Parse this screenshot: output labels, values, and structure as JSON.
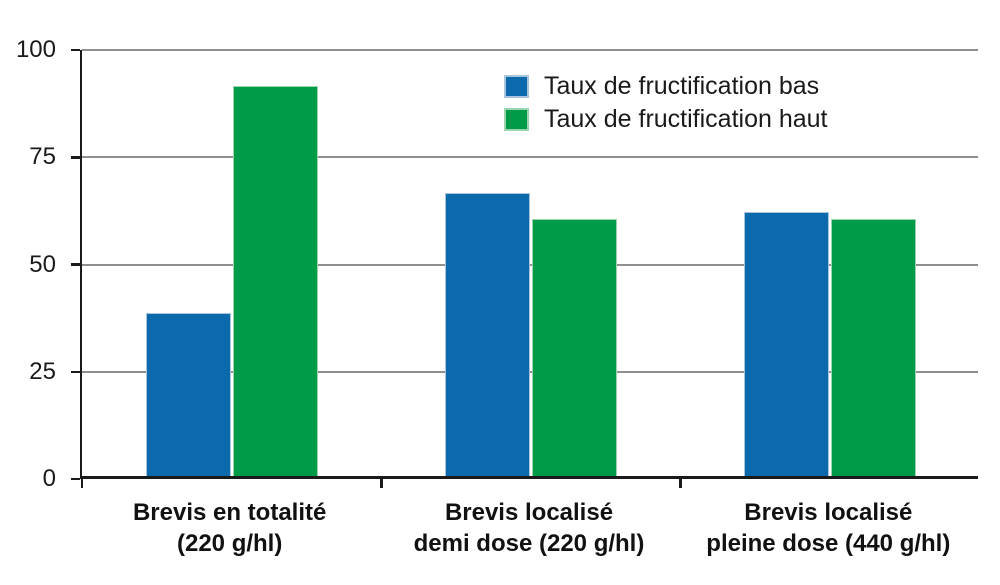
{
  "chart_data": {
    "type": "bar",
    "title": "",
    "xlabel": "",
    "ylabel": "",
    "ylim": [
      0,
      100
    ],
    "yticks": [
      0,
      25,
      50,
      75,
      100
    ],
    "grid": true,
    "legend_position": "top-center",
    "categories": [
      {
        "line1": "Brevis en totalité",
        "line2": "(220 g/hl)"
      },
      {
        "line1": "Brevis localisé",
        "line2": "demi dose (220 g/hl)"
      },
      {
        "line1": "Brevis localisé",
        "line2": "pleine dose (440 g/hl)"
      }
    ],
    "series": [
      {
        "name": "Taux de fructification bas",
        "color": "#0b69ac",
        "border_color": "#a9c5dd",
        "values": [
          38,
          66,
          61.5
        ]
      },
      {
        "name": "Taux de fructification haut",
        "color": "#009b48",
        "border_color": "#9bd5b0",
        "values": [
          91,
          60,
          60
        ]
      }
    ]
  },
  "colors": {
    "axis": "#1a1a1a",
    "gridline": "#8f8f8f",
    "background": "#ffffff",
    "tick_text": "#1a1a1a",
    "category_text": "#111111"
  }
}
